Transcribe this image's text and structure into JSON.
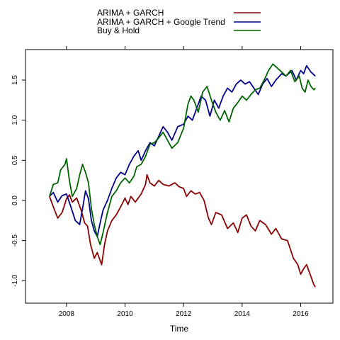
{
  "chart_data": {
    "type": "line",
    "title": "",
    "xlabel": "Time",
    "ylabel": "",
    "xlim": [
      2006.6,
      2017.1
    ],
    "ylim": [
      -1.28,
      1.88
    ],
    "x_ticks": [
      2008,
      2010,
      2012,
      2014,
      2016
    ],
    "x_tick_labels": [
      "2008",
      "2010",
      "2012",
      "2014",
      "2016"
    ],
    "y_ticks": [
      -1.0,
      -0.5,
      0.0,
      0.5,
      1.0,
      1.5
    ],
    "y_tick_labels": [
      "-1.0",
      "-0.5",
      "0.0",
      "0.5",
      "1.0",
      "1.5"
    ],
    "grid": false,
    "legend_position": "top",
    "series": [
      {
        "name": "ARIMA + GARCH",
        "color": "#8B0000",
        "points": [
          [
            2007.42,
            0.05
          ],
          [
            2007.55,
            -0.08
          ],
          [
            2007.7,
            -0.22
          ],
          [
            2007.85,
            -0.15
          ],
          [
            2008.0,
            0.02
          ],
          [
            2008.1,
            0.07
          ],
          [
            2008.2,
            -0.02
          ],
          [
            2008.35,
            0.03
          ],
          [
            2008.5,
            -0.12
          ],
          [
            2008.62,
            -0.28
          ],
          [
            2008.72,
            -0.32
          ],
          [
            2008.82,
            -0.55
          ],
          [
            2008.95,
            -0.72
          ],
          [
            2009.05,
            -0.65
          ],
          [
            2009.12,
            -0.72
          ],
          [
            2009.2,
            -0.8
          ],
          [
            2009.3,
            -0.55
          ],
          [
            2009.4,
            -0.38
          ],
          [
            2009.55,
            -0.25
          ],
          [
            2009.7,
            -0.18
          ],
          [
            2009.85,
            -0.08
          ],
          [
            2010.0,
            0.03
          ],
          [
            2010.1,
            -0.05
          ],
          [
            2010.2,
            0.05
          ],
          [
            2010.35,
            -0.02
          ],
          [
            2010.55,
            0.08
          ],
          [
            2010.7,
            0.2
          ],
          [
            2010.75,
            0.32
          ],
          [
            2010.85,
            0.22
          ],
          [
            2011.0,
            0.18
          ],
          [
            2011.15,
            0.25
          ],
          [
            2011.3,
            0.2
          ],
          [
            2011.5,
            0.18
          ],
          [
            2011.7,
            0.22
          ],
          [
            2011.85,
            0.17
          ],
          [
            2012.0,
            0.15
          ],
          [
            2012.1,
            0.05
          ],
          [
            2012.25,
            0.12
          ],
          [
            2012.4,
            0.08
          ],
          [
            2012.55,
            0.1
          ],
          [
            2012.7,
            0.0
          ],
          [
            2012.85,
            -0.22
          ],
          [
            2012.95,
            -0.3
          ],
          [
            2013.1,
            -0.15
          ],
          [
            2013.3,
            -0.18
          ],
          [
            2013.5,
            -0.35
          ],
          [
            2013.7,
            -0.28
          ],
          [
            2013.85,
            -0.4
          ],
          [
            2014.0,
            -0.22
          ],
          [
            2014.15,
            -0.18
          ],
          [
            2014.3,
            -0.32
          ],
          [
            2014.45,
            -0.38
          ],
          [
            2014.6,
            -0.25
          ],
          [
            2014.8,
            -0.3
          ],
          [
            2015.0,
            -0.42
          ],
          [
            2015.15,
            -0.35
          ],
          [
            2015.35,
            -0.48
          ],
          [
            2015.55,
            -0.5
          ],
          [
            2015.75,
            -0.72
          ],
          [
            2015.9,
            -0.8
          ],
          [
            2016.0,
            -0.92
          ],
          [
            2016.1,
            -0.85
          ],
          [
            2016.2,
            -0.8
          ],
          [
            2016.35,
            -0.95
          ],
          [
            2016.45,
            -1.05
          ],
          [
            2016.5,
            -1.08
          ]
        ]
      },
      {
        "name": "ARIMA + GARCH + Google Trend",
        "color": "#00008B",
        "points": [
          [
            2007.42,
            0.05
          ],
          [
            2007.55,
            0.1
          ],
          [
            2007.7,
            -0.02
          ],
          [
            2007.85,
            0.06
          ],
          [
            2008.0,
            0.08
          ],
          [
            2008.15,
            -0.08
          ],
          [
            2008.3,
            -0.25
          ],
          [
            2008.45,
            -0.3
          ],
          [
            2008.55,
            -0.1
          ],
          [
            2008.65,
            0.12
          ],
          [
            2008.75,
            0.02
          ],
          [
            2008.85,
            -0.25
          ],
          [
            2008.95,
            -0.38
          ],
          [
            2009.05,
            -0.45
          ],
          [
            2009.15,
            -0.28
          ],
          [
            2009.25,
            -0.12
          ],
          [
            2009.4,
            0.0
          ],
          [
            2009.55,
            0.15
          ],
          [
            2009.7,
            0.28
          ],
          [
            2009.85,
            0.35
          ],
          [
            2010.0,
            0.32
          ],
          [
            2010.15,
            0.45
          ],
          [
            2010.3,
            0.55
          ],
          [
            2010.45,
            0.62
          ],
          [
            2010.55,
            0.5
          ],
          [
            2010.7,
            0.62
          ],
          [
            2010.85,
            0.72
          ],
          [
            2011.0,
            0.68
          ],
          [
            2011.15,
            0.8
          ],
          [
            2011.3,
            0.92
          ],
          [
            2011.45,
            0.85
          ],
          [
            2011.6,
            0.75
          ],
          [
            2011.8,
            0.92
          ],
          [
            2012.0,
            0.95
          ],
          [
            2012.15,
            1.05
          ],
          [
            2012.3,
            1.0
          ],
          [
            2012.45,
            1.15
          ],
          [
            2012.6,
            1.3
          ],
          [
            2012.75,
            1.25
          ],
          [
            2012.9,
            1.05
          ],
          [
            2013.05,
            1.25
          ],
          [
            2013.2,
            1.15
          ],
          [
            2013.35,
            1.3
          ],
          [
            2013.5,
            1.4
          ],
          [
            2013.65,
            1.35
          ],
          [
            2013.8,
            1.45
          ],
          [
            2013.95,
            1.5
          ],
          [
            2014.1,
            1.45
          ],
          [
            2014.25,
            1.48
          ],
          [
            2014.4,
            1.4
          ],
          [
            2014.55,
            1.32
          ],
          [
            2014.7,
            1.45
          ],
          [
            2014.85,
            1.52
          ],
          [
            2015.0,
            1.42
          ],
          [
            2015.15,
            1.5
          ],
          [
            2015.35,
            1.58
          ],
          [
            2015.5,
            1.55
          ],
          [
            2015.7,
            1.62
          ],
          [
            2015.85,
            1.5
          ],
          [
            2016.0,
            1.62
          ],
          [
            2016.1,
            1.58
          ],
          [
            2016.2,
            1.68
          ],
          [
            2016.35,
            1.6
          ],
          [
            2016.5,
            1.55
          ]
        ]
      },
      {
        "name": "Buy & Hold",
        "color": "#006400",
        "points": [
          [
            2007.42,
            0.05
          ],
          [
            2007.55,
            0.2
          ],
          [
            2007.7,
            0.22
          ],
          [
            2007.8,
            0.38
          ],
          [
            2007.95,
            0.45
          ],
          [
            2008.0,
            0.52
          ],
          [
            2008.1,
            0.25
          ],
          [
            2008.2,
            0.05
          ],
          [
            2008.35,
            0.15
          ],
          [
            2008.45,
            0.32
          ],
          [
            2008.55,
            0.45
          ],
          [
            2008.65,
            0.35
          ],
          [
            2008.75,
            0.22
          ],
          [
            2008.85,
            -0.1
          ],
          [
            2008.95,
            -0.3
          ],
          [
            2009.05,
            -0.45
          ],
          [
            2009.15,
            -0.55
          ],
          [
            2009.25,
            -0.4
          ],
          [
            2009.4,
            -0.15
          ],
          [
            2009.55,
            0.05
          ],
          [
            2009.7,
            0.12
          ],
          [
            2009.85,
            0.22
          ],
          [
            2010.0,
            0.28
          ],
          [
            2010.15,
            0.22
          ],
          [
            2010.3,
            0.3
          ],
          [
            2010.4,
            0.42
          ],
          [
            2010.55,
            0.45
          ],
          [
            2010.7,
            0.55
          ],
          [
            2010.85,
            0.7
          ],
          [
            2011.0,
            0.72
          ],
          [
            2011.15,
            0.78
          ],
          [
            2011.3,
            0.85
          ],
          [
            2011.45,
            0.75
          ],
          [
            2011.6,
            0.65
          ],
          [
            2011.8,
            0.72
          ],
          [
            2012.0,
            0.9
          ],
          [
            2012.15,
            1.2
          ],
          [
            2012.25,
            1.3
          ],
          [
            2012.35,
            1.25
          ],
          [
            2012.5,
            1.1
          ],
          [
            2012.65,
            1.35
          ],
          [
            2012.8,
            1.42
          ],
          [
            2012.95,
            1.25
          ],
          [
            2013.1,
            1.1
          ],
          [
            2013.25,
            1.0
          ],
          [
            2013.4,
            1.12
          ],
          [
            2013.55,
            0.98
          ],
          [
            2013.7,
            1.15
          ],
          [
            2013.85,
            1.22
          ],
          [
            2014.0,
            1.3
          ],
          [
            2014.15,
            1.25
          ],
          [
            2014.3,
            1.32
          ],
          [
            2014.45,
            1.38
          ],
          [
            2014.6,
            1.4
          ],
          [
            2014.75,
            1.5
          ],
          [
            2014.9,
            1.62
          ],
          [
            2015.05,
            1.7
          ],
          [
            2015.2,
            1.65
          ],
          [
            2015.35,
            1.6
          ],
          [
            2015.5,
            1.55
          ],
          [
            2015.65,
            1.62
          ],
          [
            2015.8,
            1.48
          ],
          [
            2015.95,
            1.55
          ],
          [
            2016.05,
            1.4
          ],
          [
            2016.15,
            1.35
          ],
          [
            2016.25,
            1.5
          ],
          [
            2016.35,
            1.42
          ],
          [
            2016.45,
            1.38
          ],
          [
            2016.5,
            1.4
          ]
        ]
      }
    ]
  }
}
